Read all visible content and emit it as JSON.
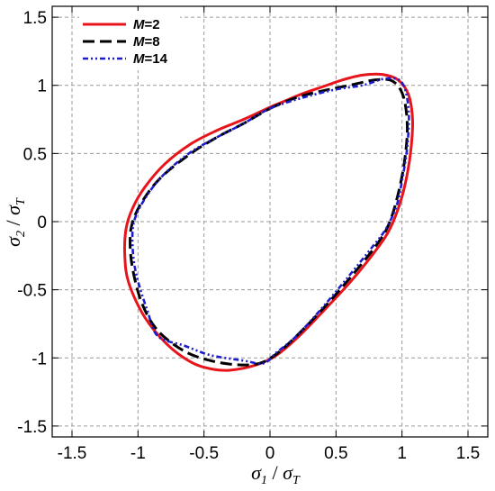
{
  "chart_data": {
    "type": "line",
    "title": "",
    "xlabel": {
      "main": "σ",
      "sub1": "1",
      "sep": " / ",
      "main2": "σ",
      "sub2": "T"
    },
    "ylabel": {
      "main": "σ",
      "sub1": "2",
      "sep": " / ",
      "main2": "σ",
      "sub2": "T"
    },
    "xlim": [
      -1.65,
      1.65
    ],
    "ylim": [
      -1.58,
      1.58
    ],
    "xticks": [
      -1.5,
      -1,
      -0.5,
      0,
      0.5,
      1,
      1.5
    ],
    "xtick_labels": [
      "-1.5",
      "-1",
      "-0.5",
      "0",
      "0.5",
      "1",
      "1.5"
    ],
    "yticks": [
      -1.5,
      -1,
      -0.5,
      0,
      0.5,
      1,
      1.5
    ],
    "ytick_labels": [
      "-1.5",
      "-1",
      "-0.5",
      "0",
      "0.5",
      "1",
      "1.5"
    ],
    "grid": true,
    "legend_position": "top-left",
    "series": [
      {
        "name": "M=2",
        "legend_var": "M",
        "legend_val": "=2",
        "color": "#e8141b",
        "style": "solid",
        "points": [
          [
            0,
            0.84
          ],
          [
            0.1,
            0.88
          ],
          [
            0.25,
            0.94
          ],
          [
            0.4,
            0.99
          ],
          [
            0.55,
            1.04
          ],
          [
            0.7,
            1.075
          ],
          [
            0.85,
            1.08
          ],
          [
            0.97,
            1.04
          ],
          [
            1.05,
            0.93
          ],
          [
            1.08,
            0.75
          ],
          [
            1.07,
            0.55
          ],
          [
            1.04,
            0.35
          ],
          [
            0.99,
            0.15
          ],
          [
            0.91,
            -0.05
          ],
          [
            0.81,
            -0.2
          ],
          [
            0.62,
            -0.43
          ],
          [
            0.42,
            -0.64
          ],
          [
            0.22,
            -0.84
          ],
          [
            0.05,
            -0.98
          ],
          [
            -0.1,
            -1.05
          ],
          [
            -0.3,
            -1.09
          ],
          [
            -0.45,
            -1.08
          ],
          [
            -0.6,
            -1.03
          ],
          [
            -0.78,
            -0.9
          ],
          [
            -0.95,
            -0.7
          ],
          [
            -1.07,
            -0.45
          ],
          [
            -1.1,
            -0.25
          ],
          [
            -1.09,
            -0.05
          ],
          [
            -1.04,
            0.1
          ],
          [
            -0.95,
            0.25
          ],
          [
            -0.8,
            0.42
          ],
          [
            -0.6,
            0.57
          ],
          [
            -0.4,
            0.67
          ],
          [
            -0.2,
            0.75
          ],
          [
            0,
            0.84
          ]
        ]
      },
      {
        "name": "M=8",
        "legend_var": "M",
        "legend_val": "=8",
        "color": "#000000",
        "style": "dashed",
        "points": [
          [
            0,
            0.83
          ],
          [
            0.2,
            0.91
          ],
          [
            0.4,
            0.96
          ],
          [
            0.6,
            1.0
          ],
          [
            0.8,
            1.04
          ],
          [
            0.93,
            1.03
          ],
          [
            1.01,
            0.92
          ],
          [
            1.04,
            0.7
          ],
          [
            1.02,
            0.45
          ],
          [
            0.97,
            0.2
          ],
          [
            0.9,
            -0.02
          ],
          [
            0.8,
            -0.18
          ],
          [
            0.6,
            -0.42
          ],
          [
            0.4,
            -0.64
          ],
          [
            0.2,
            -0.84
          ],
          [
            0.05,
            -0.97
          ],
          [
            -0.08,
            -1.04
          ],
          [
            -0.25,
            -1.05
          ],
          [
            -0.45,
            -1.02
          ],
          [
            -0.65,
            -0.95
          ],
          [
            -0.85,
            -0.8
          ],
          [
            -0.97,
            -0.6
          ],
          [
            -1.04,
            -0.35
          ],
          [
            -1.06,
            -0.15
          ],
          [
            -1.04,
            0.0
          ],
          [
            -0.96,
            0.16
          ],
          [
            -0.82,
            0.33
          ],
          [
            -0.6,
            0.5
          ],
          [
            -0.4,
            0.62
          ],
          [
            -0.2,
            0.72
          ],
          [
            0,
            0.83
          ]
        ]
      },
      {
        "name": "M=14",
        "legend_var": "M",
        "legend_val": "=14",
        "color": "#1c1ccc",
        "style": "dashdot",
        "points": [
          [
            0,
            0.83
          ],
          [
            0.25,
            0.91
          ],
          [
            0.5,
            0.97
          ],
          [
            0.7,
            1.0
          ],
          [
            0.88,
            1.05
          ],
          [
            1.0,
            1.02
          ],
          [
            1.05,
            0.82
          ],
          [
            1.04,
            0.55
          ],
          [
            1.0,
            0.3
          ],
          [
            0.96,
            0.12
          ],
          [
            0.88,
            -0.05
          ],
          [
            0.78,
            -0.18
          ],
          [
            0.58,
            -0.42
          ],
          [
            0.38,
            -0.65
          ],
          [
            0.2,
            -0.84
          ],
          [
            0.05,
            -0.96
          ],
          [
            -0.05,
            -1.04
          ],
          [
            -0.2,
            -1.02
          ],
          [
            -0.45,
            -0.98
          ],
          [
            -0.65,
            -0.91
          ],
          [
            -0.85,
            -0.84
          ],
          [
            -0.93,
            -0.65
          ],
          [
            -1.01,
            -0.4
          ],
          [
            -1.04,
            -0.2
          ],
          [
            -1.03,
            0.0
          ],
          [
            -0.94,
            0.18
          ],
          [
            -0.8,
            0.35
          ],
          [
            -0.6,
            0.51
          ],
          [
            -0.4,
            0.62
          ],
          [
            -0.2,
            0.72
          ],
          [
            0,
            0.83
          ]
        ]
      }
    ]
  }
}
